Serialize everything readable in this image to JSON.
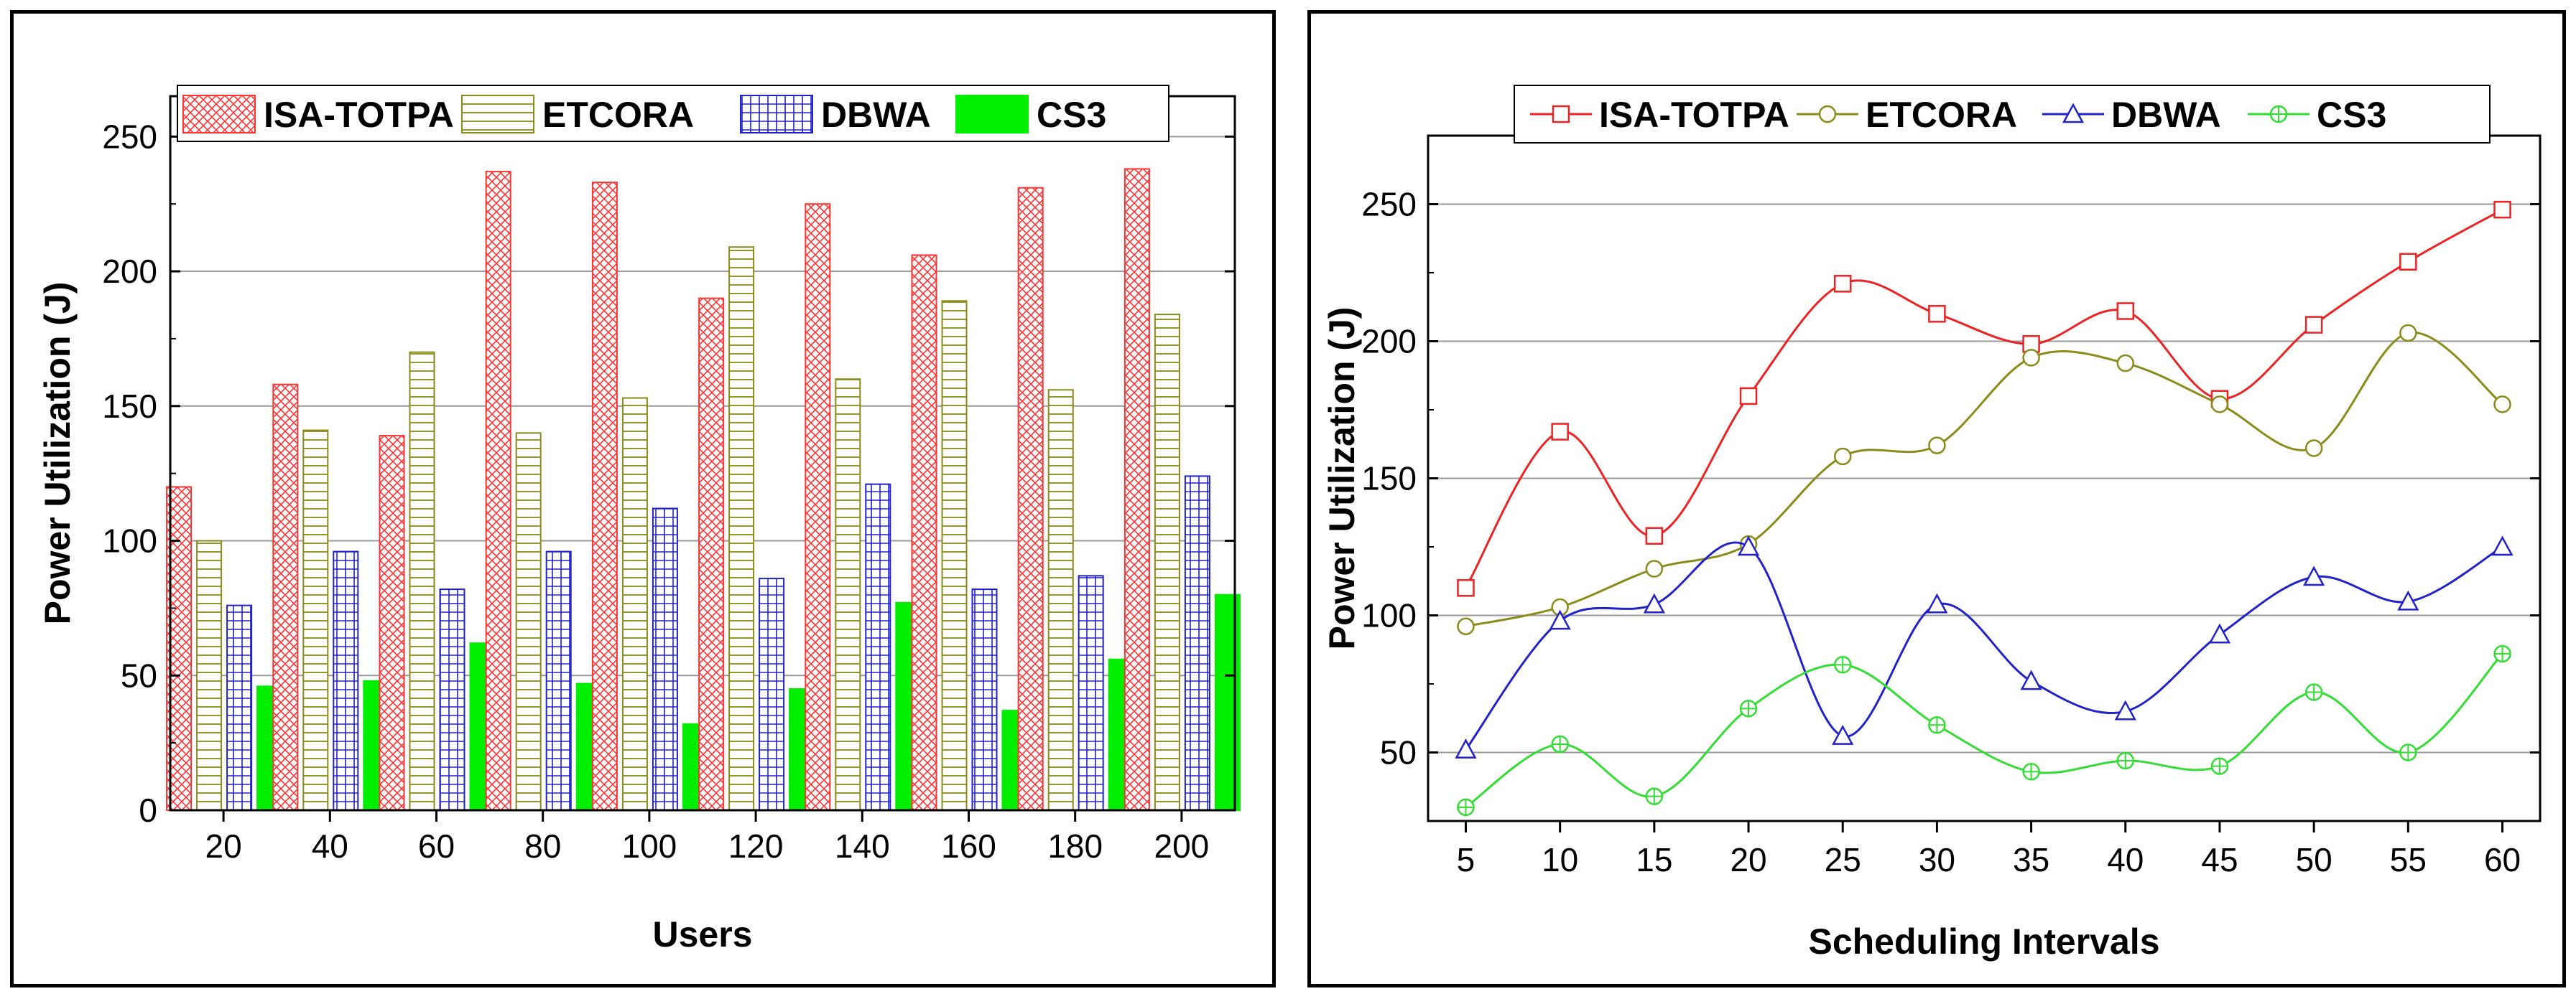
{
  "chart_data": [
    {
      "type": "bar",
      "xlabel": "Users",
      "ylabel": "Power Utilization (J)",
      "categories": [
        "20",
        "40",
        "60",
        "80",
        "100",
        "120",
        "140",
        "160",
        "180",
        "200"
      ],
      "ylim": [
        0,
        265
      ],
      "yticks": [
        0,
        50,
        100,
        150,
        200,
        250
      ],
      "grid": true,
      "legend_position": "top",
      "series": [
        {
          "name": "ISA-TOTPA",
          "color": "#ff3333",
          "pattern": "crosshatch",
          "values": [
            120,
            158,
            139,
            237,
            233,
            190,
            225,
            206,
            231,
            238
          ]
        },
        {
          "name": "ETCORA",
          "color": "#8b8b1a",
          "pattern": "horizontal",
          "values": [
            100,
            141,
            170,
            140,
            153,
            209,
            160,
            189,
            156,
            184
          ]
        },
        {
          "name": "DBWA",
          "color": "#2222cc",
          "pattern": "grid",
          "values": [
            76,
            96,
            82,
            96,
            112,
            86,
            121,
            82,
            87,
            124
          ]
        },
        {
          "name": "CS3",
          "color": "#00ee00",
          "pattern": "solid",
          "values": [
            46,
            48,
            62,
            47,
            32,
            45,
            77,
            37,
            56,
            80
          ]
        }
      ]
    },
    {
      "type": "line",
      "xlabel": "Scheduling Intervals",
      "ylabel": "Power Utilization (J)",
      "x": [
        5,
        10,
        15,
        20,
        25,
        30,
        35,
        40,
        45,
        50,
        55,
        60
      ],
      "xlim": [
        3,
        62
      ],
      "ylim": [
        25,
        275
      ],
      "yticks": [
        50,
        100,
        150,
        200,
        250
      ],
      "grid": true,
      "legend_position": "top",
      "series": [
        {
          "name": "ISA-TOTPA",
          "color": "#ee2222",
          "marker": "square",
          "values": [
            110,
            167,
            129,
            180,
            221,
            210,
            199,
            211,
            179,
            206,
            229,
            248
          ]
        },
        {
          "name": "ETCORA",
          "color": "#8b8b1a",
          "marker": "circle",
          "values": [
            96,
            103,
            117,
            126,
            158,
            162,
            194,
            192,
            177,
            161,
            203,
            177
          ]
        },
        {
          "name": "DBWA",
          "color": "#2222cc",
          "marker": "triangle",
          "values": [
            51,
            98,
            104,
            125,
            56,
            104,
            76,
            65,
            93,
            114,
            105,
            125
          ]
        },
        {
          "name": "CS3",
          "color": "#33dd33",
          "marker": "circle-plus",
          "values": [
            30,
            53,
            34,
            66,
            82,
            60,
            43,
            47,
            45,
            72,
            50,
            86
          ]
        }
      ]
    }
  ]
}
